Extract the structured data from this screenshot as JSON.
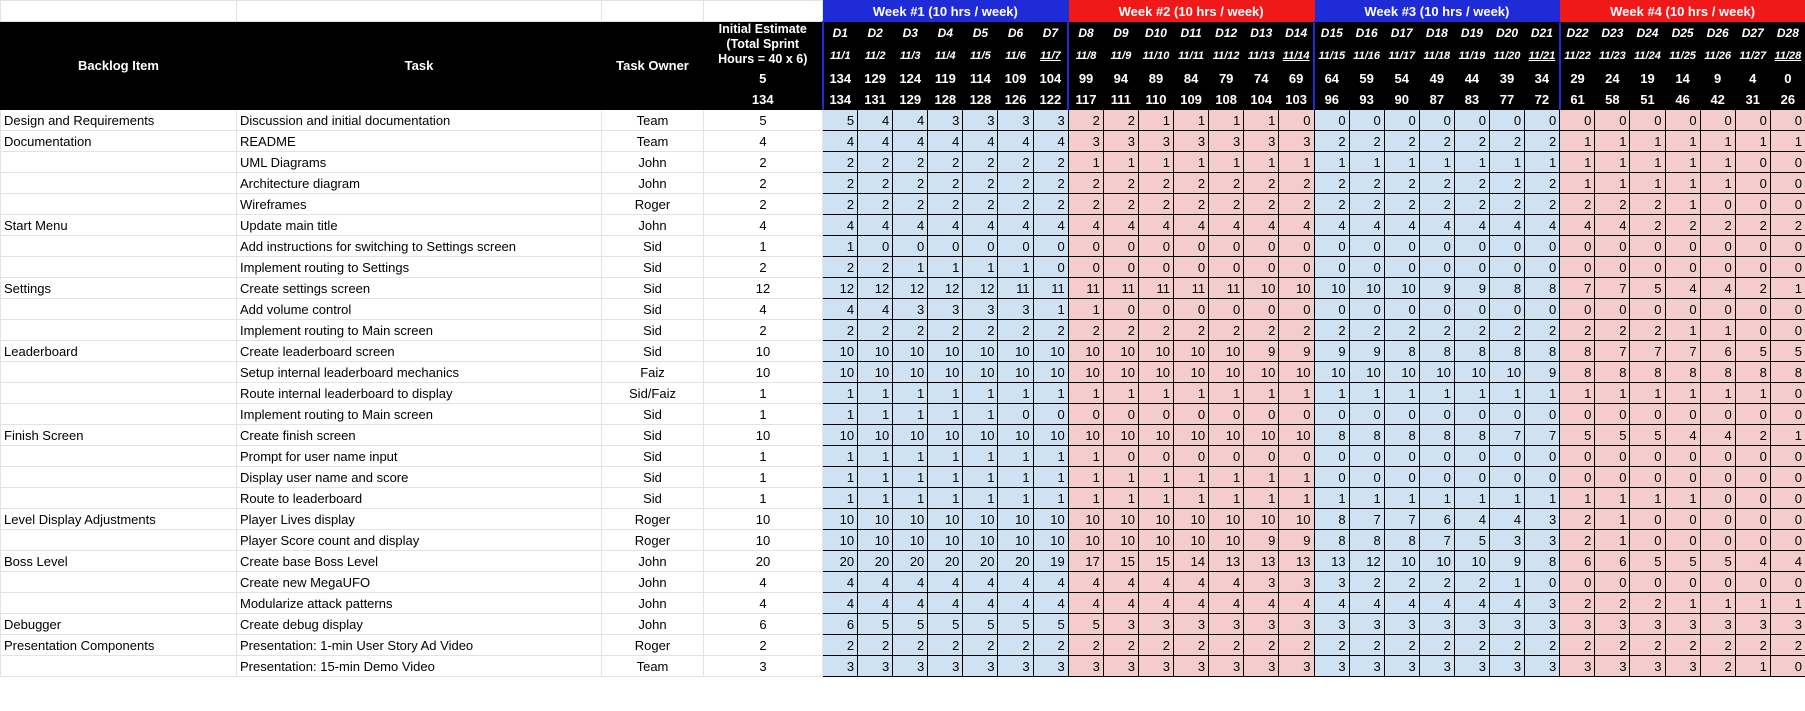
{
  "header": {
    "backlog_item": "Backlog Item",
    "task": "Task",
    "task_owner": "Task Owner",
    "initial_estimate": "Initial Estimate (Total Sprint Hours = 40 x 6)",
    "initial_total": "5",
    "estimate_sum": "134"
  },
  "weeks": [
    {
      "label": "Week #1 (10 hrs / week)",
      "color": "#1f2bd6"
    },
    {
      "label": "Week #2 (10 hrs / week)",
      "color": "#f01818"
    },
    {
      "label": "Week #3 (10 hrs / week)",
      "color": "#1f2bd6"
    },
    {
      "label": "Week #4 (10 hrs / week)",
      "color": "#f01818"
    }
  ],
  "days": [
    "D1",
    "D2",
    "D3",
    "D4",
    "D5",
    "D6",
    "D7",
    "D8",
    "D9",
    "D10",
    "D11",
    "D12",
    "D13",
    "D14",
    "D15",
    "D16",
    "D17",
    "D18",
    "D19",
    "D20",
    "D21",
    "D22",
    "D23",
    "D24",
    "D25",
    "D26",
    "D27",
    "D28"
  ],
  "dates": [
    "11/1",
    "11/2",
    "11/3",
    "11/4",
    "11/5",
    "11/6",
    "11/7",
    "11/8",
    "11/9",
    "11/10",
    "11/11",
    "11/12",
    "11/13",
    "11/14",
    "11/15",
    "11/16",
    "11/17",
    "11/18",
    "11/19",
    "11/20",
    "11/21",
    "11/22",
    "11/23",
    "11/24",
    "11/25",
    "11/26",
    "11/27",
    "11/28"
  ],
  "ideal_remaining": [
    "134",
    "129",
    "124",
    "119",
    "114",
    "109",
    "104",
    "99",
    "94",
    "89",
    "84",
    "79",
    "74",
    "69",
    "64",
    "59",
    "54",
    "49",
    "44",
    "39",
    "34",
    "29",
    "24",
    "19",
    "14",
    "9",
    "4",
    "0"
  ],
  "actual_remaining": [
    "134",
    "131",
    "129",
    "128",
    "128",
    "126",
    "122",
    "117",
    "111",
    "110",
    "109",
    "108",
    "104",
    "103",
    "96",
    "93",
    "90",
    "87",
    "83",
    "77",
    "72",
    "61",
    "58",
    "51",
    "46",
    "42",
    "31",
    "26"
  ],
  "rows": [
    {
      "item": "Design and Requirements",
      "task": "Discussion and initial documentation",
      "owner": "Team",
      "est": "5",
      "d": [
        "5",
        "4",
        "4",
        "3",
        "3",
        "3",
        "3",
        "2",
        "2",
        "1",
        "1",
        "1",
        "1",
        "0",
        "0",
        "0",
        "0",
        "0",
        "0",
        "0",
        "0",
        "0",
        "0",
        "0",
        "0",
        "0",
        "0",
        "0"
      ]
    },
    {
      "item": "Documentation",
      "task": "README",
      "owner": "Team",
      "est": "4",
      "d": [
        "4",
        "4",
        "4",
        "4",
        "4",
        "4",
        "4",
        "3",
        "3",
        "3",
        "3",
        "3",
        "3",
        "3",
        "2",
        "2",
        "2",
        "2",
        "2",
        "2",
        "2",
        "1",
        "1",
        "1",
        "1",
        "1",
        "1",
        "1"
      ]
    },
    {
      "item": "",
      "task": "UML Diagrams",
      "owner": "John",
      "est": "2",
      "d": [
        "2",
        "2",
        "2",
        "2",
        "2",
        "2",
        "2",
        "1",
        "1",
        "1",
        "1",
        "1",
        "1",
        "1",
        "1",
        "1",
        "1",
        "1",
        "1",
        "1",
        "1",
        "1",
        "1",
        "1",
        "1",
        "1",
        "0",
        "0"
      ]
    },
    {
      "item": "",
      "task": "Architecture diagram",
      "owner": "John",
      "est": "2",
      "d": [
        "2",
        "2",
        "2",
        "2",
        "2",
        "2",
        "2",
        "2",
        "2",
        "2",
        "2",
        "2",
        "2",
        "2",
        "2",
        "2",
        "2",
        "2",
        "2",
        "2",
        "2",
        "1",
        "1",
        "1",
        "1",
        "1",
        "0",
        "0"
      ]
    },
    {
      "item": "",
      "task": "Wireframes",
      "owner": "Roger",
      "est": "2",
      "d": [
        "2",
        "2",
        "2",
        "2",
        "2",
        "2",
        "2",
        "2",
        "2",
        "2",
        "2",
        "2",
        "2",
        "2",
        "2",
        "2",
        "2",
        "2",
        "2",
        "2",
        "2",
        "2",
        "2",
        "2",
        "1",
        "0",
        "0",
        "0"
      ]
    },
    {
      "item": "Start Menu",
      "task": "Update main title",
      "owner": "John",
      "est": "4",
      "d": [
        "4",
        "4",
        "4",
        "4",
        "4",
        "4",
        "4",
        "4",
        "4",
        "4",
        "4",
        "4",
        "4",
        "4",
        "4",
        "4",
        "4",
        "4",
        "4",
        "4",
        "4",
        "4",
        "4",
        "2",
        "2",
        "2",
        "2",
        "2"
      ]
    },
    {
      "item": "",
      "task": "Add instructions for switching to Settings screen",
      "owner": "Sid",
      "est": "1",
      "d": [
        "1",
        "0",
        "0",
        "0",
        "0",
        "0",
        "0",
        "0",
        "0",
        "0",
        "0",
        "0",
        "0",
        "0",
        "0",
        "0",
        "0",
        "0",
        "0",
        "0",
        "0",
        "0",
        "0",
        "0",
        "0",
        "0",
        "0",
        "0"
      ]
    },
    {
      "item": "",
      "task": "Implement routing to Settings",
      "owner": "Sid",
      "est": "2",
      "d": [
        "2",
        "2",
        "1",
        "1",
        "1",
        "1",
        "0",
        "0",
        "0",
        "0",
        "0",
        "0",
        "0",
        "0",
        "0",
        "0",
        "0",
        "0",
        "0",
        "0",
        "0",
        "0",
        "0",
        "0",
        "0",
        "0",
        "0",
        "0"
      ]
    },
    {
      "item": "Settings",
      "task": "Create settings screen",
      "owner": "Sid",
      "est": "12",
      "d": [
        "12",
        "12",
        "12",
        "12",
        "12",
        "11",
        "11",
        "11",
        "11",
        "11",
        "11",
        "11",
        "10",
        "10",
        "10",
        "10",
        "10",
        "9",
        "9",
        "8",
        "8",
        "7",
        "7",
        "5",
        "4",
        "4",
        "2",
        "1"
      ]
    },
    {
      "item": "",
      "task": "Add volume control",
      "owner": "Sid",
      "est": "4",
      "d": [
        "4",
        "4",
        "3",
        "3",
        "3",
        "3",
        "1",
        "1",
        "0",
        "0",
        "0",
        "0",
        "0",
        "0",
        "0",
        "0",
        "0",
        "0",
        "0",
        "0",
        "0",
        "0",
        "0",
        "0",
        "0",
        "0",
        "0",
        "0"
      ]
    },
    {
      "item": "",
      "task": "Implement routing to Main screen",
      "owner": "Sid",
      "est": "2",
      "d": [
        "2",
        "2",
        "2",
        "2",
        "2",
        "2",
        "2",
        "2",
        "2",
        "2",
        "2",
        "2",
        "2",
        "2",
        "2",
        "2",
        "2",
        "2",
        "2",
        "2",
        "2",
        "2",
        "2",
        "2",
        "1",
        "1",
        "0",
        "0"
      ]
    },
    {
      "item": "Leaderboard",
      "task": "Create leaderboard screen",
      "owner": "Sid",
      "est": "10",
      "d": [
        "10",
        "10",
        "10",
        "10",
        "10",
        "10",
        "10",
        "10",
        "10",
        "10",
        "10",
        "10",
        "9",
        "9",
        "9",
        "9",
        "8",
        "8",
        "8",
        "8",
        "8",
        "8",
        "7",
        "7",
        "7",
        "6",
        "5",
        "5"
      ]
    },
    {
      "item": "",
      "task": "Setup internal leaderboard mechanics",
      "owner": "Faiz",
      "est": "10",
      "d": [
        "10",
        "10",
        "10",
        "10",
        "10",
        "10",
        "10",
        "10",
        "10",
        "10",
        "10",
        "10",
        "10",
        "10",
        "10",
        "10",
        "10",
        "10",
        "10",
        "10",
        "9",
        "8",
        "8",
        "8",
        "8",
        "8",
        "8",
        "8"
      ]
    },
    {
      "item": "",
      "task": "Route internal leaderboard to display",
      "owner": "Sid/Faiz",
      "est": "1",
      "d": [
        "1",
        "1",
        "1",
        "1",
        "1",
        "1",
        "1",
        "1",
        "1",
        "1",
        "1",
        "1",
        "1",
        "1",
        "1",
        "1",
        "1",
        "1",
        "1",
        "1",
        "1",
        "1",
        "1",
        "1",
        "1",
        "1",
        "1",
        "0"
      ]
    },
    {
      "item": "",
      "task": "Implement routing to Main screen",
      "owner": "Sid",
      "est": "1",
      "d": [
        "1",
        "1",
        "1",
        "1",
        "1",
        "0",
        "0",
        "0",
        "0",
        "0",
        "0",
        "0",
        "0",
        "0",
        "0",
        "0",
        "0",
        "0",
        "0",
        "0",
        "0",
        "0",
        "0",
        "0",
        "0",
        "0",
        "0",
        "0"
      ]
    },
    {
      "item": "Finish Screen",
      "task": "Create finish screen",
      "owner": "Sid",
      "est": "10",
      "d": [
        "10",
        "10",
        "10",
        "10",
        "10",
        "10",
        "10",
        "10",
        "10",
        "10",
        "10",
        "10",
        "10",
        "10",
        "8",
        "8",
        "8",
        "8",
        "8",
        "7",
        "7",
        "5",
        "5",
        "5",
        "4",
        "4",
        "2",
        "1"
      ]
    },
    {
      "item": "",
      "task": "Prompt for user name input",
      "owner": "Sid",
      "est": "1",
      "d": [
        "1",
        "1",
        "1",
        "1",
        "1",
        "1",
        "1",
        "1",
        "0",
        "0",
        "0",
        "0",
        "0",
        "0",
        "0",
        "0",
        "0",
        "0",
        "0",
        "0",
        "0",
        "0",
        "0",
        "0",
        "0",
        "0",
        "0",
        "0"
      ]
    },
    {
      "item": "",
      "task": "Display user name and score",
      "owner": "Sid",
      "est": "1",
      "d": [
        "1",
        "1",
        "1",
        "1",
        "1",
        "1",
        "1",
        "1",
        "1",
        "1",
        "1",
        "1",
        "1",
        "1",
        "0",
        "0",
        "0",
        "0",
        "0",
        "0",
        "0",
        "0",
        "0",
        "0",
        "0",
        "0",
        "0",
        "0"
      ]
    },
    {
      "item": "",
      "task": "Route to leaderboard",
      "owner": "Sid",
      "est": "1",
      "d": [
        "1",
        "1",
        "1",
        "1",
        "1",
        "1",
        "1",
        "1",
        "1",
        "1",
        "1",
        "1",
        "1",
        "1",
        "1",
        "1",
        "1",
        "1",
        "1",
        "1",
        "1",
        "1",
        "1",
        "1",
        "1",
        "0",
        "0",
        "0"
      ]
    },
    {
      "item": "Level Display Adjustments",
      "task": "Player Lives display",
      "owner": "Roger",
      "est": "10",
      "d": [
        "10",
        "10",
        "10",
        "10",
        "10",
        "10",
        "10",
        "10",
        "10",
        "10",
        "10",
        "10",
        "10",
        "10",
        "8",
        "7",
        "7",
        "6",
        "4",
        "4",
        "3",
        "2",
        "1",
        "0",
        "0",
        "0",
        "0",
        "0"
      ]
    },
    {
      "item": "",
      "task": "Player Score count and display",
      "owner": "Roger",
      "est": "10",
      "d": [
        "10",
        "10",
        "10",
        "10",
        "10",
        "10",
        "10",
        "10",
        "10",
        "10",
        "10",
        "10",
        "9",
        "9",
        "8",
        "8",
        "8",
        "7",
        "5",
        "3",
        "3",
        "2",
        "1",
        "0",
        "0",
        "0",
        "0",
        "0"
      ]
    },
    {
      "item": "Boss Level",
      "task": "Create base Boss Level",
      "owner": "John",
      "est": "20",
      "d": [
        "20",
        "20",
        "20",
        "20",
        "20",
        "20",
        "19",
        "17",
        "15",
        "15",
        "14",
        "13",
        "13",
        "13",
        "13",
        "12",
        "10",
        "10",
        "10",
        "9",
        "8",
        "6",
        "6",
        "5",
        "5",
        "5",
        "4",
        "4"
      ]
    },
    {
      "item": "",
      "task": "Create new MegaUFO",
      "owner": "John",
      "est": "4",
      "d": [
        "4",
        "4",
        "4",
        "4",
        "4",
        "4",
        "4",
        "4",
        "4",
        "4",
        "4",
        "4",
        "3",
        "3",
        "3",
        "2",
        "2",
        "2",
        "2",
        "1",
        "0",
        "0",
        "0",
        "0",
        "0",
        "0",
        "0",
        "0"
      ]
    },
    {
      "item": "",
      "task": "Modularize attack patterns",
      "owner": "John",
      "est": "4",
      "d": [
        "4",
        "4",
        "4",
        "4",
        "4",
        "4",
        "4",
        "4",
        "4",
        "4",
        "4",
        "4",
        "4",
        "4",
        "4",
        "4",
        "4",
        "4",
        "4",
        "4",
        "3",
        "2",
        "2",
        "2",
        "1",
        "1",
        "1",
        "1"
      ]
    },
    {
      "item": "Debugger",
      "task": "Create debug display",
      "owner": "John",
      "est": "6",
      "d": [
        "6",
        "5",
        "5",
        "5",
        "5",
        "5",
        "5",
        "5",
        "3",
        "3",
        "3",
        "3",
        "3",
        "3",
        "3",
        "3",
        "3",
        "3",
        "3",
        "3",
        "3",
        "3",
        "3",
        "3",
        "3",
        "3",
        "3",
        "3"
      ]
    },
    {
      "item": "Presentation Components",
      "task": "Presentation: 1-min User Story Ad Video",
      "owner": "Roger",
      "est": "2",
      "d": [
        "2",
        "2",
        "2",
        "2",
        "2",
        "2",
        "2",
        "2",
        "2",
        "2",
        "2",
        "2",
        "2",
        "2",
        "2",
        "2",
        "2",
        "2",
        "2",
        "2",
        "2",
        "2",
        "2",
        "2",
        "2",
        "2",
        "2",
        "2"
      ]
    },
    {
      "item": "",
      "task": "Presentation: 15-min Demo Video",
      "owner": "Team",
      "est": "3",
      "d": [
        "3",
        "3",
        "3",
        "3",
        "3",
        "3",
        "3",
        "3",
        "3",
        "3",
        "3",
        "3",
        "3",
        "3",
        "3",
        "3",
        "3",
        "3",
        "3",
        "3",
        "3",
        "3",
        "3",
        "3",
        "3",
        "2",
        "1",
        "0"
      ]
    }
  ]
}
